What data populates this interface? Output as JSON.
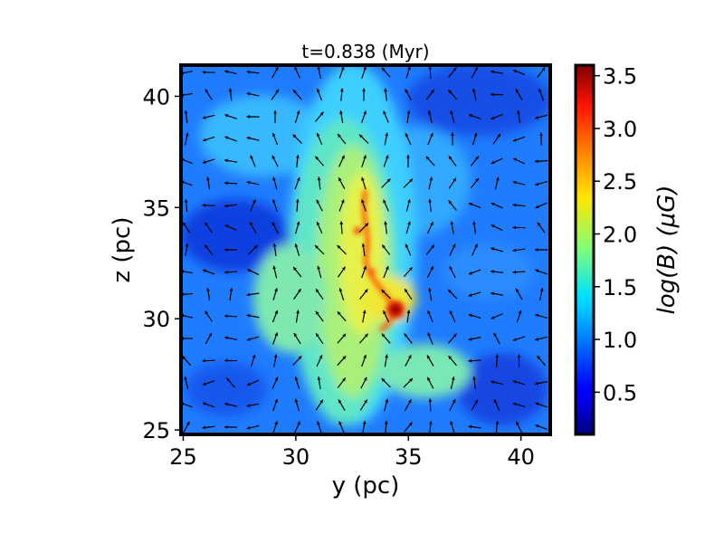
{
  "chart_data": {
    "type": "heatmap",
    "title": "t=0.838 (Myr)",
    "xlabel": "y (pc)",
    "ylabel": "z (pc)",
    "xlim": [
      24.9,
      41.3
    ],
    "ylim": [
      24.8,
      41.4
    ],
    "xticks": [
      25,
      30,
      35,
      40
    ],
    "yticks": [
      25,
      30,
      35,
      40
    ],
    "colorbar": {
      "label": "log(B) (μG)",
      "range": [
        0.1,
        3.6
      ],
      "ticks": [
        0.5,
        1.0,
        1.5,
        2.0,
        2.5,
        3.0,
        3.5
      ],
      "tick_labels": [
        "0.5",
        "1.0",
        "1.5",
        "2.0",
        "2.5",
        "3.0",
        "3.5"
      ],
      "colormap": "jet"
    },
    "field_description": "Magnetic field strength map with overlaid field-direction arrows; dense high-field filament running vertically near y=33-35 pc with peak near y=34.5, z=30.5 pc",
    "peak": {
      "y": 34.5,
      "z": 30.5,
      "value": 3.5
    }
  }
}
